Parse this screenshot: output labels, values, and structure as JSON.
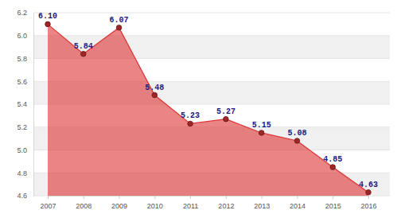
{
  "chart_data": {
    "type": "area",
    "categories": [
      "2007",
      "2008",
      "2009",
      "2010",
      "2011",
      "2012",
      "2013",
      "2014",
      "2015",
      "2016"
    ],
    "values": [
      6.1,
      5.84,
      6.07,
      5.48,
      5.23,
      5.27,
      5.15,
      5.08,
      4.85,
      4.63
    ],
    "value_labels": [
      "6.10",
      "5.84",
      "6.07",
      "5.48",
      "5.23",
      "5.27",
      "5.15",
      "5.08",
      "4.85",
      "4.63"
    ],
    "color": "#dd3333",
    "marker": "circle",
    "data_labels": true,
    "grid": true,
    "ylim": [
      4.6,
      6.2
    ],
    "yticks": [
      4.6,
      4.8,
      {
        "value": 5,
        "label": "5.0"
      },
      5.2,
      5.4,
      5.6,
      5.8,
      {
        "value": 6,
        "label": "6.0"
      },
      6.2
    ]
  }
}
